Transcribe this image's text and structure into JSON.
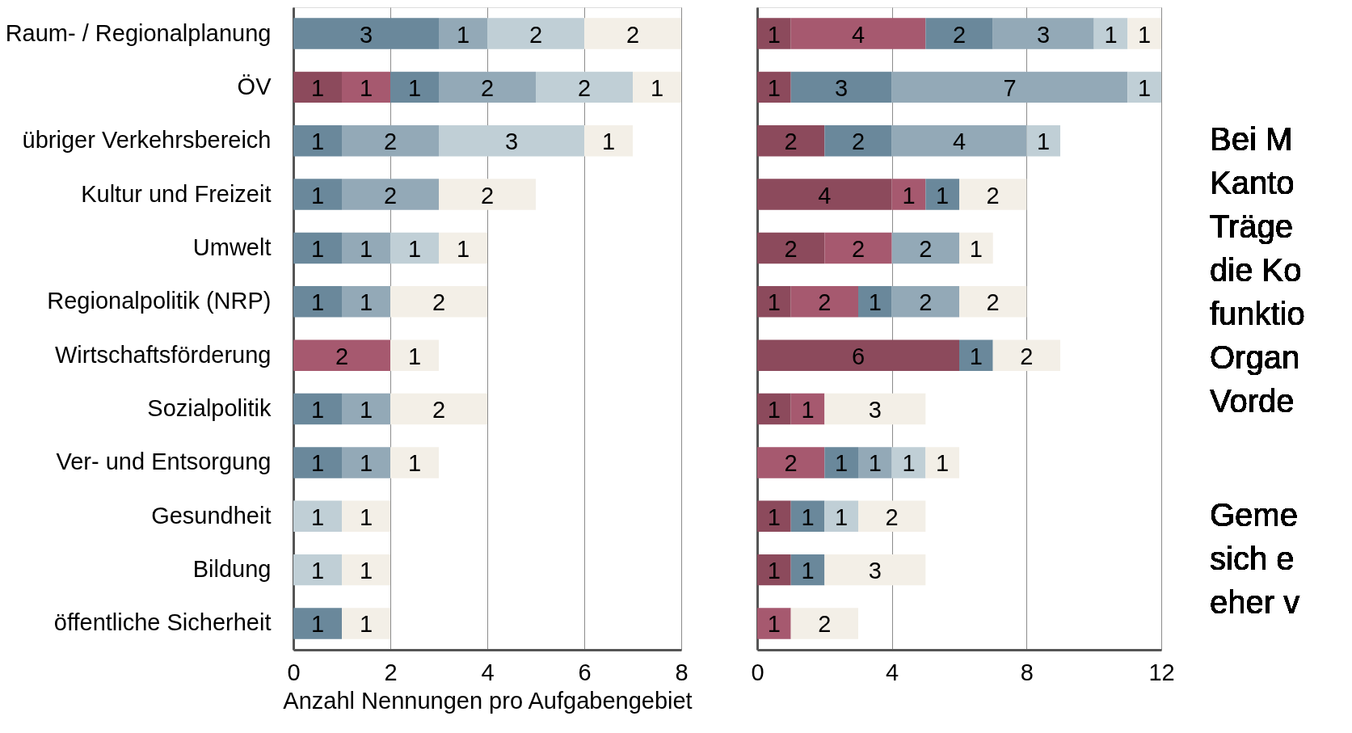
{
  "chart_data": [
    {
      "type": "bar",
      "orientation": "horizontal",
      "stacked": true,
      "data_labels": true,
      "grid": "x",
      "legend": false,
      "categories": [
        "Raum- / Regionalplanung",
        "ÖV",
        "übriger Verkehrsbereich",
        "Kultur und Freizeit",
        "Umwelt",
        "Regionalpolitik (NRP)",
        "Wirtschaftsförderung",
        "Sozialpolitik",
        "Ver- und Entsorgung",
        "Gesundheit",
        "Bildung ",
        "öffentliche Sicherheit"
      ],
      "xlim": [
        0,
        8
      ],
      "xticks": [
        0,
        2,
        4,
        6,
        8
      ],
      "xlabel": "Anzahl Nennungen pro Aufgabengebiet",
      "series": [
        {
          "color": "#8c4a5c",
          "values": [
            null,
            1,
            null,
            null,
            null,
            null,
            null,
            null,
            null,
            null,
            null,
            null
          ]
        },
        {
          "color": "#a6596f",
          "values": [
            null,
            1,
            null,
            null,
            null,
            null,
            2,
            null,
            null,
            null,
            null,
            null
          ]
        },
        {
          "color": "#6a889b",
          "values": [
            3,
            1,
            1,
            1,
            1,
            1,
            null,
            1,
            1,
            null,
            null,
            1
          ]
        },
        {
          "color": "#93a9b7",
          "values": [
            1,
            2,
            2,
            2,
            1,
            1,
            null,
            1,
            1,
            null,
            null,
            null
          ]
        },
        {
          "color": "#c0cfd6",
          "values": [
            2,
            2,
            3,
            null,
            1,
            null,
            null,
            null,
            null,
            1,
            1,
            null
          ]
        },
        {
          "color": "#f3efe7",
          "values": [
            2,
            1,
            1,
            2,
            1,
            2,
            1,
            2,
            1,
            1,
            1,
            1
          ]
        }
      ]
    },
    {
      "type": "bar",
      "orientation": "horizontal",
      "stacked": true,
      "data_labels": true,
      "grid": "x",
      "legend": false,
      "tick_labels": "x",
      "categories": [
        null,
        null,
        null,
        null,
        null,
        null,
        null,
        null,
        null,
        null,
        null,
        null
      ],
      "xlim": [
        0,
        12
      ],
      "xticks": [
        0,
        4,
        8,
        12
      ],
      "series": [
        {
          "color": "#8c4a5c",
          "values": [
            1,
            1,
            2,
            4,
            2,
            1,
            6,
            1,
            null,
            1,
            1,
            null
          ]
        },
        {
          "color": "#a6596f",
          "values": [
            4,
            null,
            null,
            1,
            2,
            2,
            null,
            1,
            2,
            null,
            null,
            1
          ]
        },
        {
          "color": "#6a889b",
          "values": [
            2,
            3,
            2,
            1,
            null,
            1,
            1,
            null,
            1,
            1,
            1,
            null
          ]
        },
        {
          "color": "#93a9b7",
          "values": [
            3,
            7,
            4,
            null,
            2,
            2,
            null,
            null,
            1,
            null,
            null,
            null
          ]
        },
        {
          "color": "#c0cfd6",
          "values": [
            1,
            1,
            1,
            null,
            null,
            null,
            null,
            null,
            1,
            1,
            null,
            null
          ]
        },
        {
          "color": "#f3efe7",
          "values": [
            1,
            null,
            null,
            2,
            1,
            2,
            2,
            3,
            1,
            2,
            3,
            2
          ]
        }
      ],
      "annotations": [
        "Bei M\nKanto\nTräge\ndie Ko\nfunktio\nOrgan\nVorde",
        "Geme\nsich e\neher v"
      ]
    }
  ]
}
